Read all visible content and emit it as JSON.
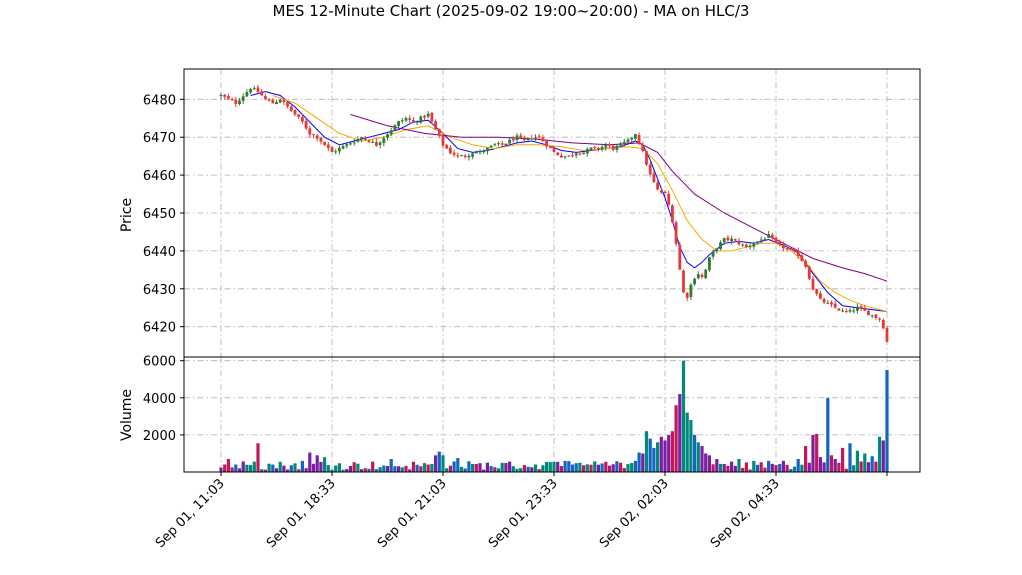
{
  "chart_data": {
    "type": "candlestick",
    "title": "MES 12-Minute Chart (2025-09-02 19:00~20:00) - MA on HLC/3",
    "price_panel": {
      "ylabel": "Price",
      "ylim": [
        6412,
        6488
      ],
      "yticks": [
        6420,
        6430,
        6440,
        6450,
        6460,
        6470,
        6480
      ],
      "grid": true,
      "candle_colors": {
        "up": "#2e7d32",
        "down": "#e53935"
      },
      "close_path": [
        [
          0,
          6481
        ],
        [
          2,
          6480
        ],
        [
          4,
          6479
        ],
        [
          6,
          6481
        ],
        [
          8,
          6483
        ],
        [
          10,
          6482
        ],
        [
          12,
          6480
        ],
        [
          14,
          6479
        ],
        [
          16,
          6480
        ],
        [
          18,
          6478
        ],
        [
          20,
          6476
        ],
        [
          22,
          6474
        ],
        [
          24,
          6471
        ],
        [
          26,
          6470
        ],
        [
          28,
          6468
        ],
        [
          30,
          6466
        ],
        [
          32,
          6467
        ],
        [
          34,
          6468
        ],
        [
          36,
          6469
        ],
        [
          38,
          6470
        ],
        [
          40,
          6469
        ],
        [
          42,
          6468
        ],
        [
          44,
          6470
        ],
        [
          46,
          6472
        ],
        [
          48,
          6474
        ],
        [
          50,
          6475
        ],
        [
          52,
          6474
        ],
        [
          54,
          6475
        ],
        [
          56,
          6476
        ],
        [
          58,
          6472
        ],
        [
          60,
          6468
        ],
        [
          62,
          6466
        ],
        [
          64,
          6465
        ],
        [
          66,
          6465
        ],
        [
          68,
          6466
        ],
        [
          70,
          6466
        ],
        [
          72,
          6467
        ],
        [
          74,
          6468
        ],
        [
          76,
          6468
        ],
        [
          78,
          6469
        ],
        [
          80,
          6470
        ],
        [
          82,
          6469
        ],
        [
          84,
          6470
        ],
        [
          86,
          6470
        ],
        [
          88,
          6468
        ],
        [
          90,
          6466
        ],
        [
          92,
          6465
        ],
        [
          94,
          6465
        ],
        [
          96,
          6466
        ],
        [
          98,
          6466
        ],
        [
          100,
          6467
        ],
        [
          102,
          6467
        ],
        [
          104,
          6468
        ],
        [
          106,
          6467
        ],
        [
          108,
          6468
        ],
        [
          110,
          6469
        ],
        [
          112,
          6471
        ],
        [
          114,
          6466
        ],
        [
          116,
          6460
        ],
        [
          118,
          6456
        ],
        [
          120,
          6455
        ],
        [
          121,
          6452
        ],
        [
          122,
          6448
        ],
        [
          123,
          6442
        ],
        [
          124,
          6435
        ],
        [
          125,
          6429
        ],
        [
          126,
          6428
        ],
        [
          127,
          6431
        ],
        [
          128,
          6433
        ],
        [
          129,
          6434
        ],
        [
          130,
          6433
        ],
        [
          131,
          6435
        ],
        [
          132,
          6438
        ],
        [
          134,
          6441
        ],
        [
          136,
          6443
        ],
        [
          138,
          6443
        ],
        [
          140,
          6442
        ],
        [
          142,
          6441
        ],
        [
          144,
          6442
        ],
        [
          146,
          6443
        ],
        [
          148,
          6444
        ],
        [
          150,
          6442
        ],
        [
          152,
          6441
        ],
        [
          154,
          6440
        ],
        [
          156,
          6439
        ],
        [
          158,
          6436
        ],
        [
          160,
          6430
        ],
        [
          162,
          6427
        ],
        [
          164,
          6426
        ],
        [
          166,
          6425
        ],
        [
          168,
          6424
        ],
        [
          170,
          6424
        ],
        [
          172,
          6425
        ],
        [
          174,
          6424
        ],
        [
          176,
          6423
        ],
        [
          178,
          6422
        ],
        [
          179,
          6420
        ],
        [
          180,
          6416
        ]
      ],
      "moving_averages": [
        {
          "color": "#0000ff",
          "points": [
            [
              8,
              6481
            ],
            [
              12,
              6482
            ],
            [
              16,
              6481
            ],
            [
              20,
              6478
            ],
            [
              24,
              6474
            ],
            [
              28,
              6470
            ],
            [
              32,
              6468
            ],
            [
              36,
              6469
            ],
            [
              40,
              6470
            ],
            [
              44,
              6471
            ],
            [
              48,
              6472
            ],
            [
              52,
              6474
            ],
            [
              56,
              6474.5
            ],
            [
              60,
              6471
            ],
            [
              64,
              6467
            ],
            [
              68,
              6466
            ],
            [
              72,
              6466.5
            ],
            [
              76,
              6467.5
            ],
            [
              80,
              6468.5
            ],
            [
              84,
              6469
            ],
            [
              88,
              6468
            ],
            [
              92,
              6466.5
            ],
            [
              96,
              6466
            ],
            [
              100,
              6466.5
            ],
            [
              104,
              6467
            ],
            [
              108,
              6467.5
            ],
            [
              112,
              6469
            ],
            [
              114,
              6468
            ],
            [
              116,
              6464
            ],
            [
              118,
              6459
            ],
            [
              120,
              6454
            ],
            [
              122,
              6448
            ],
            [
              124,
              6441
            ],
            [
              126,
              6437
            ],
            [
              128,
              6435.5
            ],
            [
              130,
              6437
            ],
            [
              132,
              6439
            ],
            [
              136,
              6442
            ],
            [
              140,
              6442.5
            ],
            [
              144,
              6442
            ],
            [
              148,
              6443
            ],
            [
              152,
              6441.5
            ],
            [
              156,
              6439.5
            ],
            [
              160,
              6434
            ],
            [
              164,
              6429
            ],
            [
              168,
              6425.5
            ],
            [
              172,
              6425
            ],
            [
              176,
              6424.5
            ],
            [
              180,
              6424
            ]
          ]
        },
        {
          "color": "#ffa500",
          "points": [
            [
              14,
              6481
            ],
            [
              20,
              6479
            ],
            [
              26,
              6475
            ],
            [
              32,
              6471
            ],
            [
              38,
              6469
            ],
            [
              44,
              6470
            ],
            [
              50,
              6472
            ],
            [
              56,
              6473
            ],
            [
              62,
              6470
            ],
            [
              68,
              6468
            ],
            [
              74,
              6467
            ],
            [
              80,
              6468
            ],
            [
              86,
              6468
            ],
            [
              92,
              6467.5
            ],
            [
              98,
              6466.5
            ],
            [
              104,
              6467
            ],
            [
              110,
              6467.5
            ],
            [
              114,
              6467
            ],
            [
              118,
              6463
            ],
            [
              122,
              6456
            ],
            [
              126,
              6448
            ],
            [
              130,
              6443
            ],
            [
              134,
              6440
            ],
            [
              138,
              6440
            ],
            [
              142,
              6441
            ],
            [
              146,
              6442
            ],
            [
              150,
              6442
            ],
            [
              154,
              6440
            ],
            [
              158,
              6437
            ],
            [
              162,
              6432
            ],
            [
              166,
              6429
            ],
            [
              170,
              6427
            ],
            [
              174,
              6425.5
            ],
            [
              178,
              6424.5
            ],
            [
              180,
              6424
            ]
          ]
        },
        {
          "color": "#800080",
          "points": [
            [
              35,
              6476
            ],
            [
              45,
              6473
            ],
            [
              55,
              6471
            ],
            [
              65,
              6470
            ],
            [
              75,
              6470
            ],
            [
              85,
              6469.5
            ],
            [
              95,
              6468.5
            ],
            [
              105,
              6468
            ],
            [
              113,
              6468.5
            ],
            [
              118,
              6466
            ],
            [
              122,
              6461
            ],
            [
              128,
              6455
            ],
            [
              136,
              6450
            ],
            [
              144,
              6446
            ],
            [
              152,
              6442
            ],
            [
              160,
              6438
            ],
            [
              168,
              6435.5
            ],
            [
              174,
              6434
            ],
            [
              180,
              6432
            ]
          ]
        }
      ]
    },
    "volume_panel": {
      "ylabel": "Volume",
      "ylim": [
        0,
        6200
      ],
      "yticks": [
        2000,
        4000,
        6000
      ],
      "grid": true,
      "bar_colors": [
        "#00897b",
        "#c2185b",
        "#7b1fa2",
        "#1565c0"
      ],
      "baseline_max": 600,
      "spikes": [
        [
          2,
          700
        ],
        [
          10,
          1550
        ],
        [
          22,
          600
        ],
        [
          24,
          1050
        ],
        [
          26,
          900
        ],
        [
          28,
          800
        ],
        [
          46,
          700
        ],
        [
          58,
          900
        ],
        [
          59,
          1100
        ],
        [
          60,
          900
        ],
        [
          64,
          750
        ],
        [
          90,
          550
        ],
        [
          108,
          500
        ],
        [
          112,
          600
        ],
        [
          113,
          1050
        ],
        [
          114,
          1000
        ],
        [
          115,
          2200
        ],
        [
          116,
          1800
        ],
        [
          117,
          1300
        ],
        [
          118,
          1600
        ],
        [
          119,
          1900
        ],
        [
          120,
          1700
        ],
        [
          121,
          2000
        ],
        [
          122,
          2200
        ],
        [
          123,
          3600
        ],
        [
          124,
          4200
        ],
        [
          125,
          6000
        ],
        [
          126,
          3200
        ],
        [
          127,
          2800
        ],
        [
          128,
          2000
        ],
        [
          129,
          1600
        ],
        [
          130,
          1400
        ],
        [
          131,
          1000
        ],
        [
          132,
          900
        ],
        [
          134,
          700
        ],
        [
          140,
          700
        ],
        [
          144,
          600
        ],
        [
          148,
          600
        ],
        [
          152,
          600
        ],
        [
          156,
          700
        ],
        [
          158,
          1400
        ],
        [
          160,
          2000
        ],
        [
          161,
          2050
        ],
        [
          162,
          800
        ],
        [
          164,
          4000
        ],
        [
          165,
          900
        ],
        [
          166,
          700
        ],
        [
          168,
          1300
        ],
        [
          170,
          1550
        ],
        [
          172,
          1150
        ],
        [
          174,
          1000
        ],
        [
          176,
          850
        ],
        [
          178,
          1900
        ],
        [
          179,
          1700
        ],
        [
          180,
          5500
        ]
      ]
    },
    "x_axis": {
      "count": 181,
      "tick_labels": [
        {
          "index": 0,
          "label": "Sep 01, 11:03"
        },
        {
          "index": 30,
          "label": "Sep 01, 18:33"
        },
        {
          "index": 60,
          "label": "Sep 01, 21:03"
        },
        {
          "index": 90,
          "label": "Sep 01, 23:33"
        },
        {
          "index": 120,
          "label": "Sep 02, 02:03"
        },
        {
          "index": 150,
          "label": "Sep 02, 04:33"
        },
        {
          "index": 180,
          "label": ""
        }
      ]
    }
  }
}
